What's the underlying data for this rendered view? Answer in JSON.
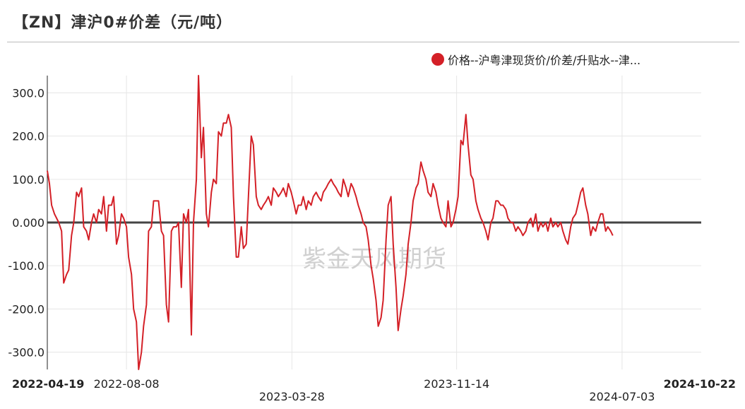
{
  "header": {
    "title": "【ZN】津沪0#价差（元/吨）"
  },
  "legend": {
    "label": "价格--沪粤津现货价/价差/升贴水--津...",
    "color": "#d42027"
  },
  "watermark": "紫金天风期货",
  "chart_data": {
    "type": "line",
    "title": "【ZN】津沪0#价差（元/吨）",
    "xlabel": "",
    "ylabel": "",
    "ylim": [
      -340,
      340
    ],
    "yticks": [
      "300.0",
      "200.0",
      "100.0",
      "0.000",
      "-100.0",
      "-200.0",
      "-300.0"
    ],
    "ytick_values": [
      300,
      200,
      100,
      0,
      -100,
      -200,
      -300
    ],
    "xlim": [
      "2022-04-19",
      "2024-10-22"
    ],
    "xticks": [
      {
        "label": "2022-04-19",
        "date": "2022-04-19",
        "bold": true,
        "row": 1
      },
      {
        "label": "2022-08-08",
        "date": "2022-08-08",
        "bold": false,
        "row": 1
      },
      {
        "label": "2023-03-28",
        "date": "2023-03-28",
        "bold": false,
        "row": 2
      },
      {
        "label": "2023-11-14",
        "date": "2023-11-14",
        "bold": false,
        "row": 1
      },
      {
        "label": "2024-07-03",
        "date": "2024-07-03",
        "bold": false,
        "row": 2
      },
      {
        "label": "2024-10-22",
        "date": "2024-10-22",
        "bold": true,
        "row": 1
      }
    ],
    "grid": true,
    "zero_line": true,
    "series": [
      {
        "name": "价格--沪粤津现货价/价差/升贴水--津...",
        "color": "#d42027",
        "points": [
          [
            "2022-04-19",
            120
          ],
          [
            "2022-04-22",
            90
          ],
          [
            "2022-04-25",
            40
          ],
          [
            "2022-04-29",
            20
          ],
          [
            "2022-05-05",
            0
          ],
          [
            "2022-05-09",
            -20
          ],
          [
            "2022-05-12",
            -140
          ],
          [
            "2022-05-16",
            -120
          ],
          [
            "2022-05-19",
            -110
          ],
          [
            "2022-05-23",
            -30
          ],
          [
            "2022-05-26",
            0
          ],
          [
            "2022-05-30",
            70
          ],
          [
            "2022-06-02",
            60
          ],
          [
            "2022-06-06",
            80
          ],
          [
            "2022-06-09",
            -10
          ],
          [
            "2022-06-13",
            -20
          ],
          [
            "2022-06-16",
            -40
          ],
          [
            "2022-06-20",
            0
          ],
          [
            "2022-06-23",
            20
          ],
          [
            "2022-06-27",
            0
          ],
          [
            "2022-06-30",
            30
          ],
          [
            "2022-07-04",
            20
          ],
          [
            "2022-07-07",
            60
          ],
          [
            "2022-07-11",
            -20
          ],
          [
            "2022-07-14",
            40
          ],
          [
            "2022-07-18",
            40
          ],
          [
            "2022-07-21",
            60
          ],
          [
            "2022-07-25",
            -50
          ],
          [
            "2022-07-28",
            -30
          ],
          [
            "2022-08-01",
            20
          ],
          [
            "2022-08-04",
            10
          ],
          [
            "2022-08-08",
            -10
          ],
          [
            "2022-08-11",
            -80
          ],
          [
            "2022-08-15",
            -120
          ],
          [
            "2022-08-18",
            -200
          ],
          [
            "2022-08-22",
            -230
          ],
          [
            "2022-08-25",
            -340
          ],
          [
            "2022-08-29",
            -300
          ],
          [
            "2022-09-01",
            -240
          ],
          [
            "2022-09-05",
            -190
          ],
          [
            "2022-09-08",
            -20
          ],
          [
            "2022-09-12",
            -10
          ],
          [
            "2022-09-15",
            50
          ],
          [
            "2022-09-19",
            50
          ],
          [
            "2022-09-22",
            50
          ],
          [
            "2022-09-26",
            -20
          ],
          [
            "2022-09-29",
            -30
          ],
          [
            "2022-10-03",
            -190
          ],
          [
            "2022-10-06",
            -230
          ],
          [
            "2022-10-10",
            -20
          ],
          [
            "2022-10-13",
            -10
          ],
          [
            "2022-10-17",
            -10
          ],
          [
            "2022-10-20",
            0
          ],
          [
            "2022-10-24",
            -150
          ],
          [
            "2022-10-27",
            20
          ],
          [
            "2022-10-31",
            0
          ],
          [
            "2022-11-03",
            30
          ],
          [
            "2022-11-07",
            -260
          ],
          [
            "2022-11-10",
            0
          ],
          [
            "2022-11-14",
            100
          ],
          [
            "2022-11-17",
            340
          ],
          [
            "2022-11-21",
            150
          ],
          [
            "2022-11-24",
            220
          ],
          [
            "2022-11-28",
            20
          ],
          [
            "2022-12-01",
            -10
          ],
          [
            "2022-12-05",
            70
          ],
          [
            "2022-12-08",
            100
          ],
          [
            "2022-12-12",
            90
          ],
          [
            "2022-12-15",
            210
          ],
          [
            "2022-12-19",
            200
          ],
          [
            "2022-12-22",
            230
          ],
          [
            "2022-12-26",
            230
          ],
          [
            "2022-12-29",
            250
          ],
          [
            "2023-01-02",
            220
          ],
          [
            "2023-01-05",
            60
          ],
          [
            "2023-01-09",
            -80
          ],
          [
            "2023-01-12",
            -80
          ],
          [
            "2023-01-16",
            -10
          ],
          [
            "2023-01-19",
            -60
          ],
          [
            "2023-01-23",
            -50
          ],
          [
            "2023-01-26",
            60
          ],
          [
            "2023-01-30",
            200
          ],
          [
            "2023-02-02",
            180
          ],
          [
            "2023-02-06",
            60
          ],
          [
            "2023-02-09",
            40
          ],
          [
            "2023-02-13",
            30
          ],
          [
            "2023-02-16",
            40
          ],
          [
            "2023-02-20",
            50
          ],
          [
            "2023-02-23",
            60
          ],
          [
            "2023-02-27",
            40
          ],
          [
            "2023-03-02",
            80
          ],
          [
            "2023-03-06",
            70
          ],
          [
            "2023-03-09",
            60
          ],
          [
            "2023-03-13",
            70
          ],
          [
            "2023-03-16",
            80
          ],
          [
            "2023-03-20",
            60
          ],
          [
            "2023-03-23",
            90
          ],
          [
            "2023-03-27",
            70
          ],
          [
            "2023-03-30",
            50
          ],
          [
            "2023-04-03",
            20
          ],
          [
            "2023-04-06",
            40
          ],
          [
            "2023-04-10",
            40
          ],
          [
            "2023-04-13",
            60
          ],
          [
            "2023-04-17",
            30
          ],
          [
            "2023-04-20",
            50
          ],
          [
            "2023-04-24",
            40
          ],
          [
            "2023-04-27",
            60
          ],
          [
            "2023-05-01",
            70
          ],
          [
            "2023-05-04",
            60
          ],
          [
            "2023-05-08",
            50
          ],
          [
            "2023-05-11",
            70
          ],
          [
            "2023-05-15",
            80
          ],
          [
            "2023-05-18",
            90
          ],
          [
            "2023-05-22",
            100
          ],
          [
            "2023-05-25",
            90
          ],
          [
            "2023-05-29",
            80
          ],
          [
            "2023-06-01",
            70
          ],
          [
            "2023-06-05",
            60
          ],
          [
            "2023-06-08",
            100
          ],
          [
            "2023-06-12",
            80
          ],
          [
            "2023-06-15",
            60
          ],
          [
            "2023-06-19",
            90
          ],
          [
            "2023-06-22",
            80
          ],
          [
            "2023-06-26",
            60
          ],
          [
            "2023-06-29",
            40
          ],
          [
            "2023-07-03",
            20
          ],
          [
            "2023-07-06",
            0
          ],
          [
            "2023-07-10",
            -10
          ],
          [
            "2023-07-13",
            -40
          ],
          [
            "2023-07-17",
            -100
          ],
          [
            "2023-07-20",
            -130
          ],
          [
            "2023-07-24",
            -180
          ],
          [
            "2023-07-27",
            -240
          ],
          [
            "2023-07-31",
            -220
          ],
          [
            "2023-08-03",
            -180
          ],
          [
            "2023-08-07",
            -40
          ],
          [
            "2023-08-10",
            40
          ],
          [
            "2023-08-14",
            60
          ],
          [
            "2023-08-17",
            -50
          ],
          [
            "2023-08-21",
            -150
          ],
          [
            "2023-08-24",
            -250
          ],
          [
            "2023-08-28",
            -200
          ],
          [
            "2023-08-31",
            -170
          ],
          [
            "2023-09-04",
            -120
          ],
          [
            "2023-09-07",
            -50
          ],
          [
            "2023-09-11",
            0
          ],
          [
            "2023-09-14",
            50
          ],
          [
            "2023-09-18",
            80
          ],
          [
            "2023-09-21",
            90
          ],
          [
            "2023-09-25",
            140
          ],
          [
            "2023-09-28",
            120
          ],
          [
            "2023-10-02",
            100
          ],
          [
            "2023-10-05",
            70
          ],
          [
            "2023-10-09",
            60
          ],
          [
            "2023-10-12",
            90
          ],
          [
            "2023-10-16",
            70
          ],
          [
            "2023-10-19",
            40
          ],
          [
            "2023-10-23",
            10
          ],
          [
            "2023-10-26",
            0
          ],
          [
            "2023-10-30",
            -10
          ],
          [
            "2023-11-02",
            50
          ],
          [
            "2023-11-06",
            -10
          ],
          [
            "2023-11-09",
            0
          ],
          [
            "2023-11-13",
            30
          ],
          [
            "2023-11-16",
            60
          ],
          [
            "2023-11-20",
            190
          ],
          [
            "2023-11-23",
            180
          ],
          [
            "2023-11-27",
            250
          ],
          [
            "2023-11-30",
            180
          ],
          [
            "2023-12-04",
            110
          ],
          [
            "2023-12-07",
            100
          ],
          [
            "2023-12-11",
            50
          ],
          [
            "2023-12-14",
            30
          ],
          [
            "2023-12-18",
            10
          ],
          [
            "2023-12-21",
            0
          ],
          [
            "2023-12-25",
            -20
          ],
          [
            "2023-12-28",
            -40
          ],
          [
            "2024-01-01",
            0
          ],
          [
            "2024-01-04",
            10
          ],
          [
            "2024-01-08",
            50
          ],
          [
            "2024-01-11",
            50
          ],
          [
            "2024-01-15",
            40
          ],
          [
            "2024-01-18",
            40
          ],
          [
            "2024-01-22",
            30
          ],
          [
            "2024-01-25",
            10
          ],
          [
            "2024-01-29",
            0
          ],
          [
            "2024-02-01",
            0
          ],
          [
            "2024-02-05",
            -20
          ],
          [
            "2024-02-08",
            -10
          ],
          [
            "2024-02-12",
            -20
          ],
          [
            "2024-02-15",
            -30
          ],
          [
            "2024-02-19",
            -20
          ],
          [
            "2024-02-22",
            0
          ],
          [
            "2024-02-26",
            10
          ],
          [
            "2024-02-29",
            -10
          ],
          [
            "2024-03-04",
            20
          ],
          [
            "2024-03-07",
            -20
          ],
          [
            "2024-03-11",
            0
          ],
          [
            "2024-03-14",
            -10
          ],
          [
            "2024-03-18",
            0
          ],
          [
            "2024-03-21",
            -20
          ],
          [
            "2024-03-25",
            10
          ],
          [
            "2024-03-28",
            -10
          ],
          [
            "2024-04-01",
            0
          ],
          [
            "2024-04-04",
            -10
          ],
          [
            "2024-04-08",
            0
          ],
          [
            "2024-04-11",
            -20
          ],
          [
            "2024-04-15",
            -40
          ],
          [
            "2024-04-18",
            -50
          ],
          [
            "2024-04-22",
            -10
          ],
          [
            "2024-04-25",
            10
          ],
          [
            "2024-04-29",
            20
          ],
          [
            "2024-05-02",
            40
          ],
          [
            "2024-05-06",
            70
          ],
          [
            "2024-05-09",
            80
          ],
          [
            "2024-05-13",
            40
          ],
          [
            "2024-05-16",
            20
          ],
          [
            "2024-05-20",
            -30
          ],
          [
            "2024-05-23",
            -10
          ],
          [
            "2024-05-27",
            -20
          ],
          [
            "2024-05-30",
            0
          ],
          [
            "2024-06-03",
            20
          ],
          [
            "2024-06-06",
            20
          ],
          [
            "2024-06-10",
            -20
          ],
          [
            "2024-06-13",
            -10
          ],
          [
            "2024-06-17",
            -20
          ],
          [
            "2024-06-20",
            -30
          ]
        ]
      }
    ]
  }
}
